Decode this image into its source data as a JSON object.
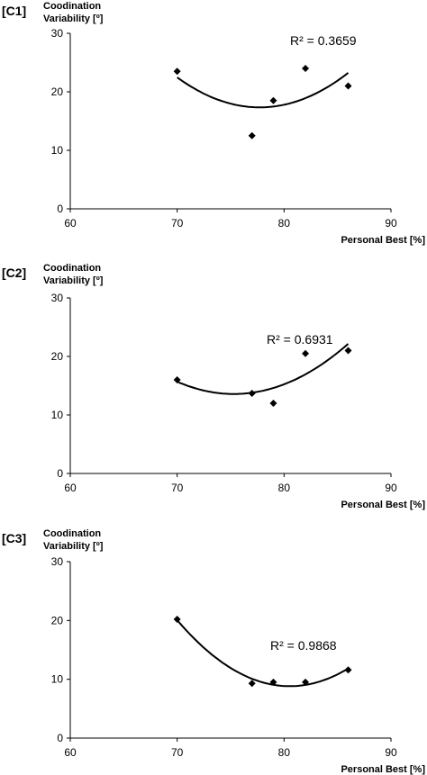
{
  "chart_data": [
    {
      "type": "scatter",
      "panel_label": "[C1]",
      "y_label": [
        "Coodination",
        "Variability [º]"
      ],
      "x_label": "Personal Best [%]",
      "annotation": "R² = 0.3659",
      "x": [
        70,
        77,
        79,
        82,
        86
      ],
      "values": [
        23.5,
        12.5,
        18.5,
        24,
        21
      ],
      "color": "#000000",
      "trendline": "poly2",
      "xlim": [
        60,
        90
      ],
      "ylim": [
        0,
        30
      ],
      "xticks": [
        60,
        70,
        80,
        90
      ],
      "yticks": [
        0,
        10,
        20,
        30
      ]
    },
    {
      "type": "scatter",
      "panel_label": "[C2]",
      "y_label": [
        "Coodination",
        "Variability [º]"
      ],
      "x_label": "Personal Best [%]",
      "annotation": "R² = 0.6931",
      "x": [
        70,
        77,
        79,
        82,
        86
      ],
      "values": [
        16,
        13.7,
        12,
        20.5,
        21
      ],
      "color": "#000000",
      "trendline": "poly2",
      "xlim": [
        60,
        90
      ],
      "ylim": [
        0,
        30
      ],
      "xticks": [
        60,
        70,
        80,
        90
      ],
      "yticks": [
        0,
        10,
        20,
        30
      ]
    },
    {
      "type": "scatter",
      "panel_label": "[C3]",
      "y_label": [
        "Coodination",
        "Variability [º]"
      ],
      "x_label": "Personal Best [%]",
      "annotation": "R² = 0.9868",
      "x": [
        70,
        77,
        79,
        82,
        86
      ],
      "values": [
        20.2,
        9.3,
        9.5,
        9.5,
        11.6
      ],
      "color": "#000000",
      "trendline": "poly2",
      "xlim": [
        60,
        90
      ],
      "ylim": [
        0,
        30
      ],
      "xticks": [
        60,
        70,
        80,
        90
      ],
      "yticks": [
        0,
        10,
        20,
        30
      ]
    }
  ]
}
